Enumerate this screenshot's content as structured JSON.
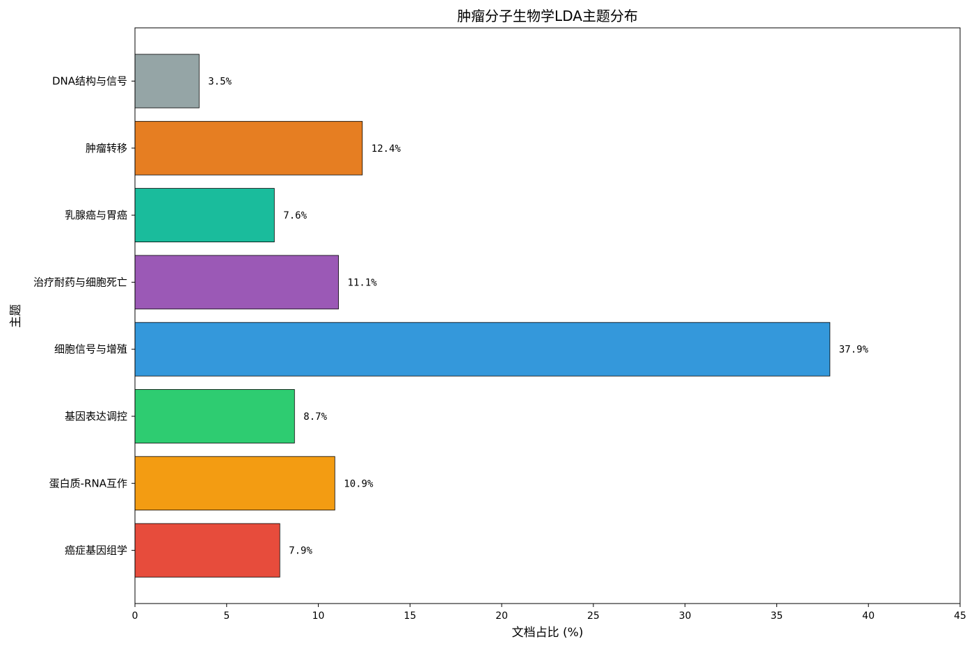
{
  "chart_data": {
    "type": "bar",
    "orientation": "horizontal",
    "title": "肿瘤分子生物学LDA主题分布",
    "xlabel": "文档占比 (%)",
    "ylabel": "主题",
    "xlim": [
      0,
      45
    ],
    "xticks": [
      0,
      5,
      10,
      15,
      20,
      25,
      30,
      35,
      40,
      45
    ],
    "grid": false,
    "legend": "none",
    "categories": [
      "DNA结构与信号",
      "肿瘤转移",
      "乳腺癌与胃癌",
      "治疗耐药与细胞死亡",
      "细胞信号与增殖",
      "基因表达调控",
      "蛋白质-RNA互作",
      "癌症基因组学"
    ],
    "values": [
      3.5,
      12.4,
      7.6,
      11.1,
      37.9,
      8.7,
      10.9,
      7.9
    ],
    "data_labels": [
      "3.5%",
      "12.4%",
      "7.6%",
      "11.1%",
      "37.9%",
      "8.7%",
      "10.9%",
      "7.9%"
    ],
    "colors": [
      "#95a5a6",
      "#e67e22",
      "#1abc9c",
      "#9b59b6",
      "#3498db",
      "#2ecc71",
      "#f39c12",
      "#e74c3c"
    ]
  }
}
